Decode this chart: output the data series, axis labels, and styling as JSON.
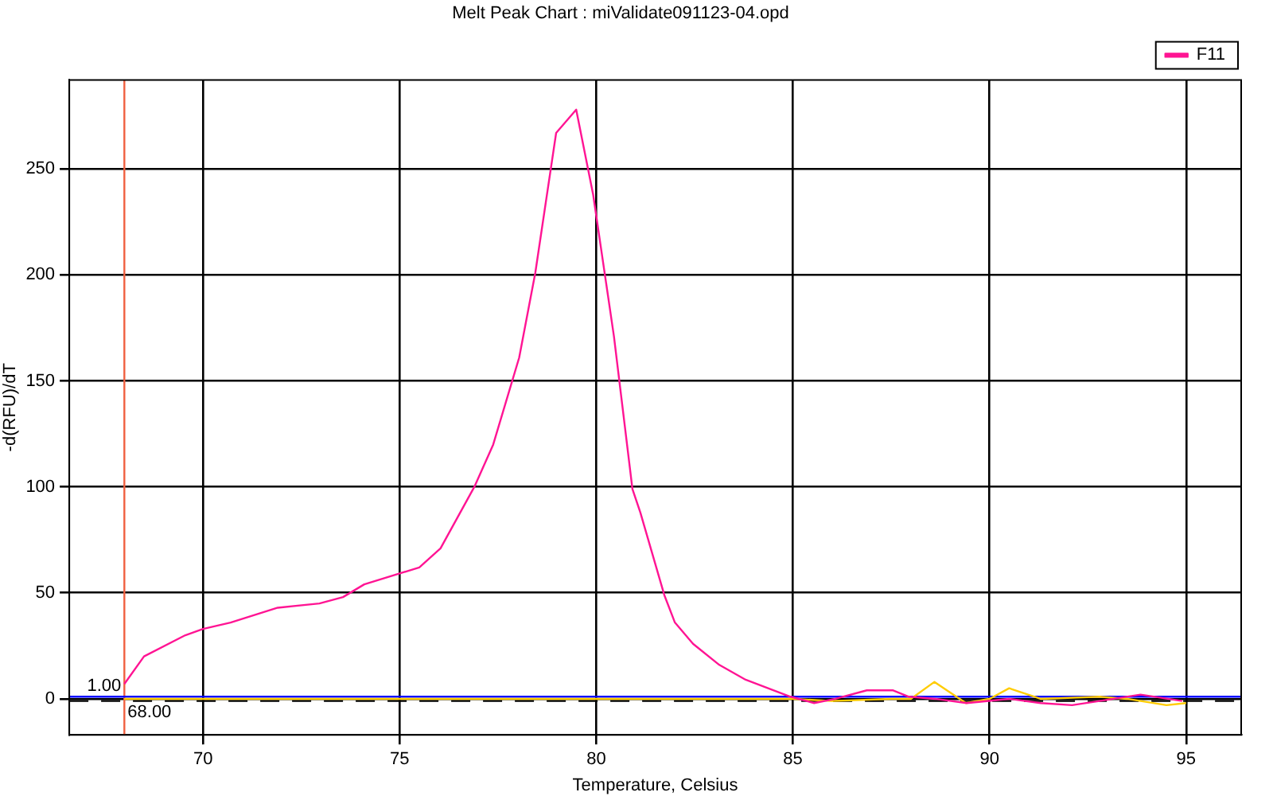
{
  "chart_data": {
    "type": "line",
    "title": "Melt Peak Chart : miValidate091123-04.opd",
    "xlabel": "Temperature, Celsius",
    "ylabel": "-d(RFU)/dT",
    "xlim": [
      66.6,
      96.4
    ],
    "xticks": [
      70,
      75,
      80,
      85,
      90,
      95
    ],
    "ylim": [
      -17,
      292
    ],
    "yticks": [
      0,
      50,
      100,
      150,
      200,
      250
    ],
    "grid": true,
    "legend": "top right",
    "marker": "none",
    "series": [
      {
        "name": "F11",
        "color": "#ff1493",
        "x": [
          68.0,
          68.5,
          69.55,
          70.0,
          70.7,
          71.9,
          72.96,
          73.56,
          74.1,
          75.5,
          76.04,
          76.9,
          77.38,
          78.04,
          78.45,
          78.98,
          79.49,
          79.92,
          80.45,
          80.92,
          81.12,
          81.73,
          82.0,
          82.46,
          83.13,
          83.8,
          84.94,
          85.54,
          86.08,
          86.88,
          87.55,
          87.95,
          88.62,
          89.42,
          90.5,
          91.3,
          92.1,
          92.8,
          93.84,
          94.9
        ],
        "values": [
          7,
          20,
          30,
          33,
          36,
          43,
          45,
          48,
          54,
          62,
          71,
          100,
          120,
          161,
          201,
          267,
          278,
          238,
          171,
          99,
          88,
          49,
          36,
          26,
          16,
          9,
          1,
          -2,
          0,
          4,
          4,
          1,
          0,
          -2,
          0,
          -2,
          -3,
          -1,
          2,
          -1
        ]
      },
      {
        "color": "#ffcc00",
        "x": [
          68.0,
          70.0,
          72.0,
          75.0,
          80.0,
          85.0,
          86.0,
          87.5,
          88.0,
          88.6,
          89.4,
          90.0,
          90.5,
          91.3,
          92.8,
          93.5,
          94.5,
          95.0
        ],
        "values": [
          0,
          0,
          0,
          0,
          0,
          0,
          -1,
          0,
          0,
          8,
          -2,
          0,
          5,
          0,
          1,
          0,
          -3,
          -2
        ]
      }
    ],
    "ref_lines": [
      {
        "axis": "y",
        "value": -1,
        "color": "#000000",
        "line_style": "dashed"
      },
      {
        "axis": "x",
        "value": 68,
        "label": "68.00",
        "color": "#f06040"
      },
      {
        "axis": "y",
        "value": 1,
        "label": "1.00",
        "color": "#0000ff"
      }
    ]
  }
}
